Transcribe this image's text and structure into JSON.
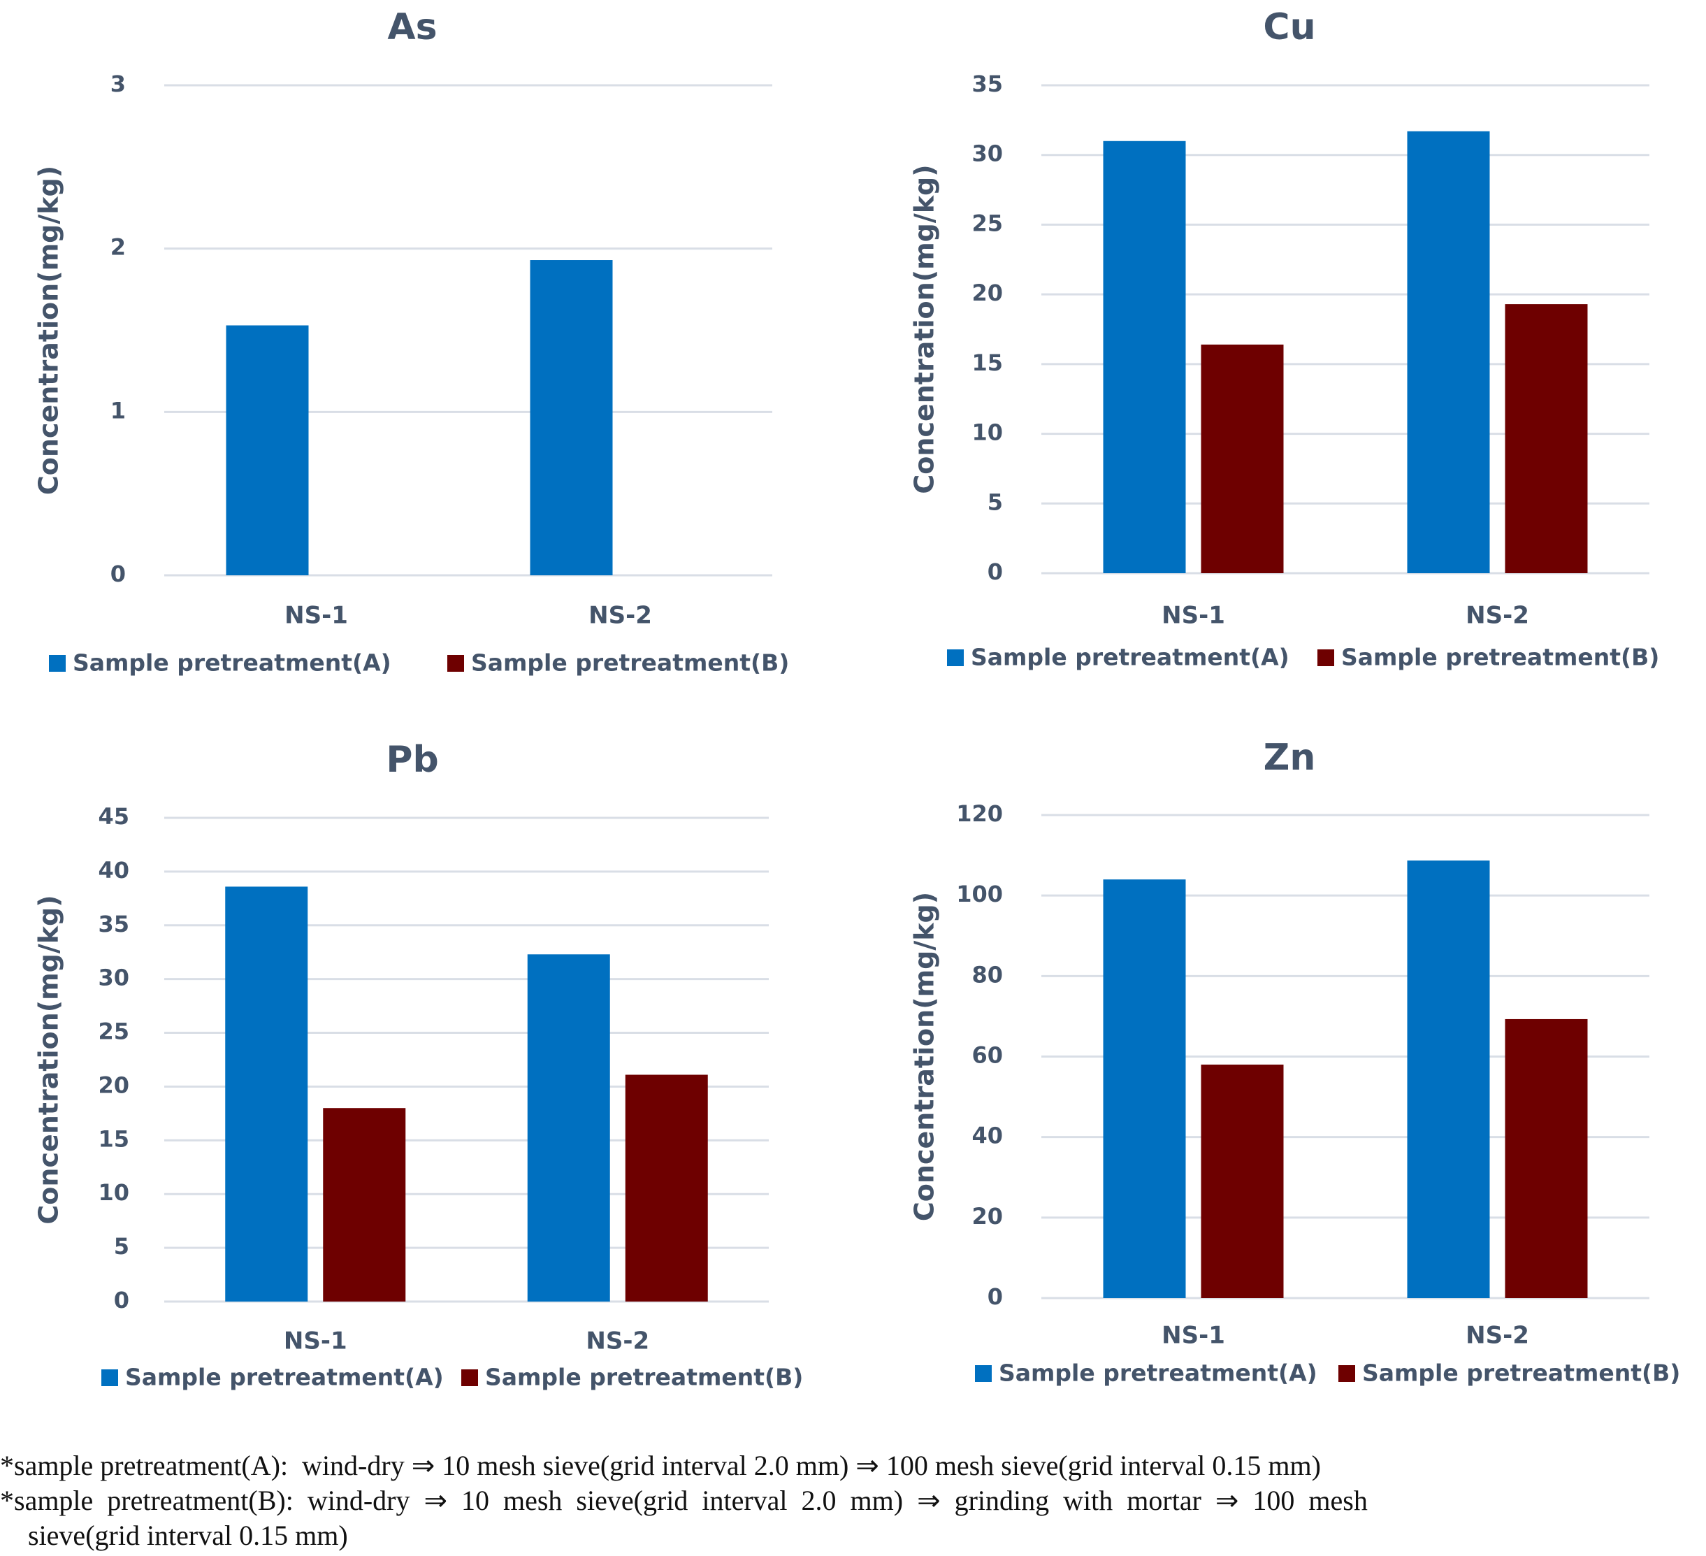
{
  "colors": {
    "series_a": "#0070C0",
    "series_b": "#6E0000",
    "text": "#44546A",
    "grid": "#D9DEE6"
  },
  "chart_data": [
    {
      "type": "bar",
      "title": "As",
      "xlabel": "",
      "ylabel": "Concentration(mg/kg)",
      "categories": [
        "NS-1",
        "NS-2"
      ],
      "ylim": [
        0,
        3
      ],
      "yticks": [
        0,
        1,
        2,
        3
      ],
      "grid": true,
      "legend": "bottom",
      "series": [
        {
          "name": "Sample pretreatment(A)",
          "values": [
            1.53,
            1.93
          ]
        },
        {
          "name": "Sample pretreatment(B)",
          "values": [
            0,
            0
          ]
        }
      ]
    },
    {
      "type": "bar",
      "title": "Cu",
      "xlabel": "",
      "ylabel": "Concentration(mg/kg)",
      "categories": [
        "NS-1",
        "NS-2"
      ],
      "ylim": [
        0,
        35
      ],
      "yticks": [
        0,
        5,
        10,
        15,
        20,
        25,
        30,
        35
      ],
      "grid": true,
      "legend": "bottom",
      "series": [
        {
          "name": "Sample pretreatment(A)",
          "values": [
            31.0,
            31.7
          ]
        },
        {
          "name": "Sample pretreatment(B)",
          "values": [
            16.4,
            19.3
          ]
        }
      ]
    },
    {
      "type": "bar",
      "title": "Pb",
      "xlabel": "",
      "ylabel": "Concentration(mg/kg)",
      "categories": [
        "NS-1",
        "NS-2"
      ],
      "ylim": [
        0,
        45
      ],
      "yticks": [
        0,
        5,
        10,
        15,
        20,
        25,
        30,
        35,
        40,
        45
      ],
      "grid": true,
      "legend": "bottom",
      "series": [
        {
          "name": "Sample pretreatment(A)",
          "values": [
            38.6,
            32.3
          ]
        },
        {
          "name": "Sample pretreatment(B)",
          "values": [
            18.0,
            21.1
          ]
        }
      ]
    },
    {
      "type": "bar",
      "title": "Zn",
      "xlabel": "",
      "ylabel": "Concentration(mg/kg)",
      "categories": [
        "NS-1",
        "NS-2"
      ],
      "ylim": [
        0,
        120
      ],
      "yticks": [
        0,
        20,
        40,
        60,
        80,
        100,
        120
      ],
      "grid": true,
      "legend": "bottom",
      "series": [
        {
          "name": "Sample pretreatment(A)",
          "values": [
            104.0,
            108.7
          ]
        },
        {
          "name": "Sample pretreatment(B)",
          "values": [
            58.0,
            69.3
          ]
        }
      ]
    }
  ],
  "footnotes": [
    "*sample pretreatment(A):  wind-dry ⇒ 10 mesh sieve(grid interval 2.0 mm) ⇒ 100 mesh sieve(grid interval 0.15 mm)",
    "*sample  pretreatment(B):  wind-dry  ⇒  10  mesh  sieve(grid  interval  2.0  mm)  ⇒  grinding  with  mortar  ⇒  100  mesh",
    "    sieve(grid interval 0.15 mm)"
  ]
}
